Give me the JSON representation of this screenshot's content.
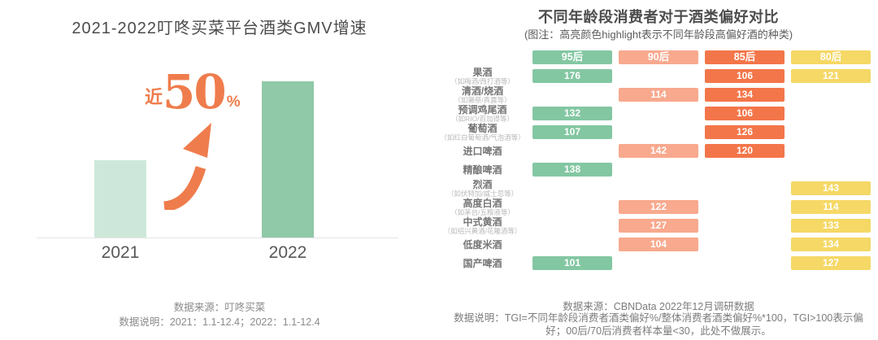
{
  "left_chart": {
    "title": "2021-2022叮咚买菜平台酒类GMV增速",
    "annotation": {
      "prefix": "近",
      "value": "50",
      "suffix": "%"
    },
    "bars": [
      {
        "label": "2021",
        "color": "#cde8da"
      },
      {
        "label": "2022",
        "color": "#8fc9a7"
      }
    ],
    "accent_color": "#ef7c4c",
    "source": "数据来源：叮咚买菜",
    "note": "数据说明：2021：1.1-12.4；2022：1.1-12.4"
  },
  "right_chart": {
    "title": "不同年龄段消费者对于酒类偏好对比",
    "subtitle": "(图注：高亮颜色highlight表示不同年龄段高偏好酒的种类)",
    "columns": [
      {
        "label": "95后",
        "color": "#83c7a2"
      },
      {
        "label": "90后",
        "color": "#f8a98e"
      },
      {
        "label": "85后",
        "color": "#f3764a"
      },
      {
        "label": "80后",
        "color": "#f5d866"
      }
    ],
    "rows": [
      {
        "name": "果酒",
        "sub": "（如梅酒/西打酒等）",
        "values": [
          176,
          null,
          106,
          121
        ]
      },
      {
        "name": "清酒/烧酒",
        "sub": "（如獭祭/真露等）",
        "values": [
          null,
          114,
          134,
          null
        ]
      },
      {
        "name": "预调鸡尾酒",
        "sub": "（如RIO/百加得等）",
        "values": [
          132,
          null,
          106,
          null
        ]
      },
      {
        "name": "葡萄酒",
        "sub": "（如红白葡萄酒/气泡酒等）",
        "values": [
          107,
          null,
          126,
          null
        ]
      },
      {
        "name": "进口啤酒",
        "sub": "",
        "values": [
          null,
          142,
          120,
          null
        ]
      },
      {
        "name": "精酿啤酒",
        "sub": "",
        "values": [
          138,
          null,
          null,
          null
        ]
      },
      {
        "name": "烈酒",
        "sub": "（如伏特加/威士忌等）",
        "values": [
          null,
          null,
          null,
          143
        ]
      },
      {
        "name": "高度白酒",
        "sub": "（如茅台/五粮液等）",
        "values": [
          null,
          122,
          null,
          114
        ]
      },
      {
        "name": "中式黄酒",
        "sub": "（如绍兴黄酒/花雕酒等）",
        "values": [
          null,
          127,
          null,
          133
        ]
      },
      {
        "name": "低度米酒",
        "sub": "",
        "values": [
          null,
          104,
          null,
          134
        ]
      },
      {
        "name": "国产啤酒",
        "sub": "",
        "values": [
          101,
          null,
          null,
          127
        ]
      }
    ],
    "source": "数据来源：CBNData 2022年12月调研数据",
    "note": "数据说明：TGI=不同年龄段消费者酒类偏好%/整体消费者酒类偏好%*100，TGI>100表示偏好；00后/70后消费者样本量<30，此处不做展示。"
  },
  "chart_data": [
    {
      "type": "bar",
      "title": "2021-2022叮咚买菜平台酒类GMV增速",
      "categories": [
        "2021",
        "2022"
      ],
      "values": [
        1,
        2
      ],
      "units": "relative bar height (no y-axis shown)",
      "annotation": "近50%",
      "xlabel": "",
      "ylabel": "",
      "grid": false,
      "legend": false
    },
    {
      "type": "heatmap",
      "title": "不同年龄段消费者对于酒类偏好对比",
      "value_metric": "TGI",
      "categories": [
        "果酒",
        "清酒/烧酒",
        "预调鸡尾酒",
        "葡萄酒",
        "进口啤酒",
        "精酿啤酒",
        "烈酒",
        "高度白酒",
        "中式黄酒",
        "低度米酒",
        "国产啤酒"
      ],
      "series": [
        {
          "name": "95后",
          "values": [
            176,
            null,
            132,
            107,
            null,
            138,
            null,
            null,
            null,
            null,
            101
          ]
        },
        {
          "name": "90后",
          "values": [
            null,
            114,
            null,
            null,
            142,
            null,
            null,
            122,
            127,
            104,
            null
          ]
        },
        {
          "name": "85后",
          "values": [
            106,
            134,
            106,
            126,
            120,
            null,
            null,
            null,
            null,
            null,
            null
          ]
        },
        {
          "name": "80后",
          "values": [
            121,
            null,
            null,
            null,
            null,
            null,
            143,
            114,
            133,
            134,
            127
          ]
        }
      ],
      "legend": false,
      "grid": false
    }
  ]
}
